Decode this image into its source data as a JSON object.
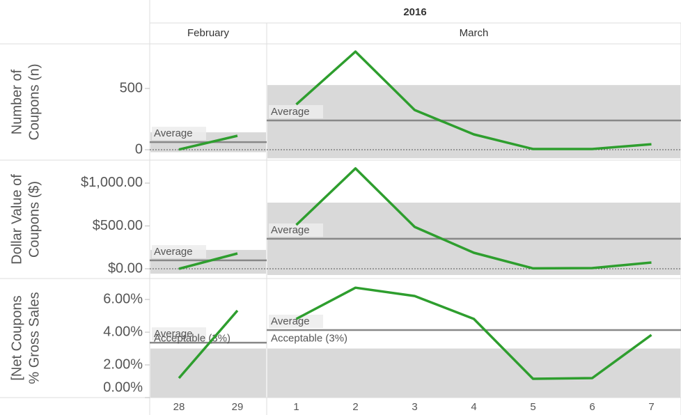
{
  "chart_data": {
    "type": "line",
    "title": "2016",
    "color": "#2e9e2e",
    "panels": [
      {
        "name": "February",
        "categories": [
          "28",
          "29"
        ]
      },
      {
        "name": "March",
        "categories": [
          "1",
          "2",
          "3",
          "4",
          "5",
          "6",
          "7"
        ]
      }
    ],
    "rows": [
      {
        "label": [
          "Number of",
          "Coupons (n)"
        ],
        "ylim": [
          -85,
          864
        ],
        "yticks": [
          0,
          500
        ],
        "panels": [
          {
            "values": [
              2,
              114
            ],
            "average": {
              "value": 62,
              "label": "Average"
            },
            "band": [
              -20,
              142
            ]
          },
          {
            "values": [
              370,
              801,
              324,
              125,
              6,
              6,
              45
            ],
            "average": {
              "value": 239,
              "label": "Average"
            },
            "band": [
              -70,
              528
            ]
          }
        ]
      },
      {
        "label": [
          "Dollar Value of",
          "Coupons ($)"
        ],
        "ylim": [
          -114,
          1268
        ],
        "yticks": [
          {
            "value": 0,
            "label": "$0.00"
          },
          {
            "value": 500,
            "label": "$500.00"
          },
          {
            "value": 1000,
            "label": "$1,000.00"
          }
        ],
        "panels": [
          {
            "values": [
              0,
              179
            ],
            "average": {
              "value": 98,
              "label": "Average"
            },
            "band": [
              -57,
              220
            ]
          },
          {
            "values": [
              512,
              1171,
              488,
              187,
              5,
              8,
              73
            ],
            "average": {
              "value": 350,
              "label": "Average"
            },
            "band": [
              -73,
              772
            ]
          }
        ]
      },
      {
        "label": [
          "[Net Coupons",
          "% Gross Sales"
        ],
        "ylim": [
          0,
          7.28
        ],
        "yticks": [
          {
            "value": 0,
            "label": "0.00%"
          },
          {
            "value": 2,
            "label": "2.00%"
          },
          {
            "value": 4,
            "label": "4.00%"
          },
          {
            "value": 6,
            "label": "6.00%"
          }
        ],
        "reference": {
          "value": 3,
          "label": "Acceptable (3%)"
        },
        "panels": [
          {
            "values": [
              1.19,
              5.32
            ],
            "average": {
              "value": 3.36,
              "label": "Average"
            }
          },
          {
            "values": [
              4.81,
              6.72,
              6.21,
              4.81,
              1.15,
              1.19,
              3.83
            ],
            "average": {
              "value": 4.13,
              "label": "Average"
            }
          }
        ]
      }
    ]
  }
}
